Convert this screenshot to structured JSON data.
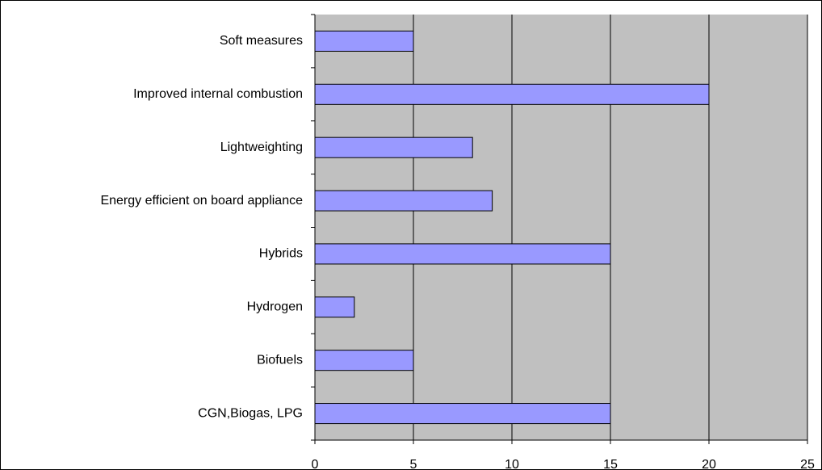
{
  "chart_data": {
    "type": "bar",
    "orientation": "horizontal",
    "categories": [
      "Soft measures",
      "Improved internal combustion",
      "Lightweighting",
      "Energy efficient on board appliance",
      "Hybrids",
      "Hydrogen",
      "Biofuels",
      "CGN,Biogas, LPG"
    ],
    "values": [
      5,
      20,
      8,
      9,
      15,
      2,
      5,
      15
    ],
    "color": "#9999ff",
    "xlim": [
      0,
      25
    ],
    "xticks": [
      0,
      5,
      10,
      15,
      20,
      25
    ],
    "grid": true,
    "plot_background": "#c0c0c0"
  }
}
